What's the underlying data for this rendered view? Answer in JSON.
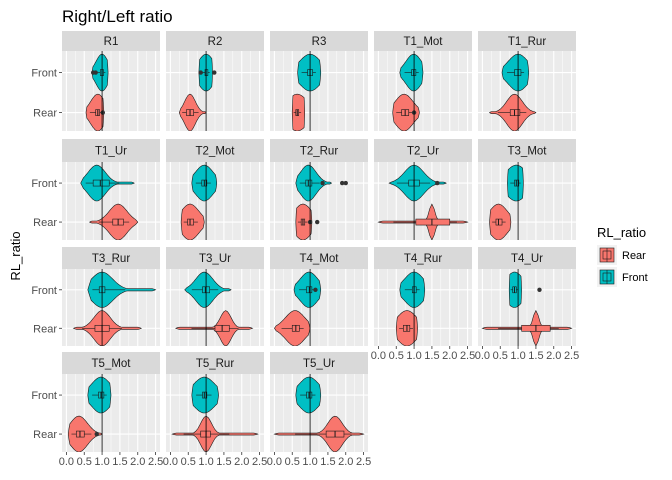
{
  "colors": {
    "Rear": "#F8766D",
    "Front": "#00BFC4",
    "panel": "#EBEBEB",
    "strip": "#D9D9D9",
    "grid": "#FFFFFF"
  },
  "chart_data": {
    "type": "violin",
    "title": "Right/Left ratio",
    "ylabel": "RL_ratio",
    "xlabel": "",
    "categories": [
      "Front",
      "Rear"
    ],
    "xlim": [
      0,
      2.5
    ],
    "reference_line": 1.0,
    "x_tick_values": [
      0,
      0.5,
      1,
      1.5,
      2,
      2.5
    ],
    "x_tick_labels": [
      "0.0",
      "0.5",
      "1.0",
      "1.5",
      "2.0",
      "2.5"
    ],
    "legend": {
      "title": "RL_ratio",
      "entries": [
        "Rear",
        "Front"
      ],
      "position": "right"
    },
    "grid": true,
    "panels": [
      {
        "name": "R1",
        "series": {
          "Front": {
            "min": 0.72,
            "q1": 0.95,
            "median": 1.0,
            "q3": 1.04,
            "max": 1.17,
            "peak": 1.0,
            "width": 0.17,
            "outliers": [
              0.75,
              0.82
            ]
          },
          "Rear": {
            "min": 0.55,
            "q1": 0.82,
            "median": 0.88,
            "q3": 0.93,
            "max": 1.05,
            "peak": 0.88,
            "width": 0.2,
            "outliers": [
              1.02
            ]
          }
        }
      },
      {
        "name": "R2",
        "series": {
          "Front": {
            "min": 0.8,
            "q1": 0.97,
            "median": 1.0,
            "q3": 1.05,
            "max": 1.18,
            "peak": 1.0,
            "width": 0.22,
            "outliers": [
              0.85,
              1.23
            ]
          },
          "Rear": {
            "min": 0.25,
            "q1": 0.45,
            "median": 0.55,
            "q3": 0.65,
            "max": 1.0,
            "peak": 0.55,
            "width": 0.15,
            "outliers": []
          }
        }
      },
      {
        "name": "R3",
        "series": {
          "Front": {
            "min": 0.65,
            "q1": 0.93,
            "median": 1.0,
            "q3": 1.07,
            "max": 1.3,
            "peak": 1.0,
            "width": 0.3,
            "outliers": []
          },
          "Rear": {
            "min": 0.5,
            "q1": 0.6,
            "median": 0.64,
            "q3": 0.68,
            "max": 0.85,
            "peak": 0.64,
            "width": 0.3,
            "outliers": []
          }
        }
      },
      {
        "name": "T1_Mot",
        "series": {
          "Front": {
            "min": 0.6,
            "q1": 0.93,
            "median": 0.99,
            "q3": 1.05,
            "max": 1.25,
            "peak": 0.99,
            "width": 0.22,
            "outliers": []
          },
          "Rear": {
            "min": 0.4,
            "q1": 0.65,
            "median": 0.75,
            "q3": 0.85,
            "max": 1.15,
            "peak": 0.72,
            "width": 0.25,
            "outliers": [
              1.0
            ]
          }
        }
      },
      {
        "name": "T1_Rur",
        "series": {
          "Front": {
            "min": 0.55,
            "q1": 0.9,
            "median": 1.0,
            "q3": 1.08,
            "max": 1.3,
            "peak": 1.0,
            "width": 0.28,
            "outliers": []
          },
          "Rear": {
            "min": 0.2,
            "q1": 0.78,
            "median": 0.9,
            "q3": 1.05,
            "max": 1.5,
            "peak": 0.9,
            "width": 0.22,
            "outliers": []
          }
        }
      },
      {
        "name": "T1_Ur",
        "series": {
          "Front": {
            "min": 0.4,
            "q1": 0.75,
            "median": 0.95,
            "q3": 1.2,
            "max": 1.9,
            "peak": 0.85,
            "width": 0.24,
            "outliers": []
          },
          "Rear": {
            "min": 0.65,
            "q1": 1.3,
            "median": 1.45,
            "q3": 1.6,
            "max": 2.0,
            "peak": 1.45,
            "width": 0.25,
            "outliers": []
          }
        }
      },
      {
        "name": "T2_Mot",
        "series": {
          "Front": {
            "min": 0.6,
            "q1": 0.88,
            "median": 0.95,
            "q3": 1.02,
            "max": 1.3,
            "peak": 0.95,
            "width": 0.25,
            "outliers": []
          },
          "Rear": {
            "min": 0.3,
            "q1": 0.48,
            "median": 0.55,
            "q3": 0.65,
            "max": 0.95,
            "peak": 0.55,
            "width": 0.25,
            "outliers": []
          }
        }
      },
      {
        "name": "T2_Rur",
        "series": {
          "Front": {
            "min": 0.6,
            "q1": 0.88,
            "median": 0.95,
            "q3": 1.05,
            "max": 1.6,
            "peak": 0.95,
            "width": 0.22,
            "outliers": [
              1.35,
              1.9,
              2.0
            ]
          },
          "Rear": {
            "min": 0.6,
            "q1": 0.75,
            "median": 0.8,
            "q3": 0.85,
            "max": 1.05,
            "peak": 0.8,
            "width": 0.25,
            "outliers": [
              1.0,
              1.2
            ]
          }
        }
      },
      {
        "name": "T2_Ur",
        "series": {
          "Front": {
            "min": 0.3,
            "q1": 0.85,
            "median": 1.0,
            "q3": 1.15,
            "max": 1.9,
            "peak": 1.0,
            "width": 0.27,
            "outliers": [
              1.65
            ]
          },
          "Rear": {
            "min": 0.0,
            "q1": 1.05,
            "median": 1.5,
            "q3": 2.0,
            "max": 2.5,
            "peak": 1.5,
            "width": 0.08,
            "outliers": []
          }
        }
      },
      {
        "name": "T3_Mot",
        "series": {
          "Front": {
            "min": 0.7,
            "q1": 0.9,
            "median": 0.95,
            "q3": 1.02,
            "max": 1.15,
            "peak": 0.95,
            "width": 0.3,
            "outliers": []
          },
          "Rear": {
            "min": 0.2,
            "q1": 0.38,
            "median": 0.45,
            "q3": 0.55,
            "max": 0.8,
            "peak": 0.45,
            "width": 0.25,
            "outliers": []
          }
        }
      },
      {
        "name": "T3_Rur",
        "series": {
          "Front": {
            "min": 0.6,
            "q1": 0.92,
            "median": 1.0,
            "q3": 1.08,
            "max": 2.5,
            "peak": 1.0,
            "width": 0.3,
            "outliers": []
          },
          "Rear": {
            "min": 0.2,
            "q1": 0.8,
            "median": 1.0,
            "q3": 1.2,
            "max": 2.1,
            "peak": 1.0,
            "width": 0.23,
            "outliers": []
          }
        }
      },
      {
        "name": "T3_Ur",
        "series": {
          "Front": {
            "min": 0.4,
            "q1": 0.9,
            "median": 0.98,
            "q3": 1.1,
            "max": 1.7,
            "peak": 0.95,
            "width": 0.24,
            "outliers": []
          },
          "Rear": {
            "min": 0.15,
            "q1": 1.25,
            "median": 1.45,
            "q3": 1.65,
            "max": 2.3,
            "peak": 1.55,
            "width": 0.15,
            "outliers": []
          }
        }
      },
      {
        "name": "T4_Mot",
        "series": {
          "Front": {
            "min": 0.55,
            "q1": 0.9,
            "median": 0.98,
            "q3": 1.05,
            "max": 1.3,
            "peak": 0.97,
            "width": 0.25,
            "outliers": [
              1.15
            ]
          },
          "Rear": {
            "min": 0.0,
            "q1": 0.5,
            "median": 0.6,
            "q3": 0.7,
            "max": 1.0,
            "peak": 0.58,
            "width": 0.27,
            "outliers": []
          }
        }
      },
      {
        "name": "T4_Rur",
        "series": {
          "Front": {
            "min": 0.6,
            "q1": 0.95,
            "median": 1.0,
            "q3": 1.06,
            "max": 1.3,
            "peak": 1.0,
            "width": 0.27,
            "outliers": []
          },
          "Rear": {
            "min": 0.5,
            "q1": 0.7,
            "median": 0.8,
            "q3": 0.88,
            "max": 1.1,
            "peak": 0.8,
            "width": 0.28,
            "outliers": []
          }
        }
      },
      {
        "name": "T4_Ur",
        "series": {
          "Front": {
            "min": 0.75,
            "q1": 0.85,
            "median": 0.9,
            "q3": 0.95,
            "max": 1.1,
            "peak": 0.9,
            "width": 0.25,
            "outliers": [
              1.6
            ]
          },
          "Rear": {
            "min": 0.0,
            "q1": 1.1,
            "median": 1.5,
            "q3": 1.9,
            "max": 2.5,
            "peak": 1.5,
            "width": 0.08,
            "outliers": []
          }
        }
      },
      {
        "name": "T5_Mot",
        "series": {
          "Front": {
            "min": 0.6,
            "q1": 0.9,
            "median": 0.97,
            "q3": 1.05,
            "max": 1.25,
            "peak": 0.97,
            "width": 0.27,
            "outliers": []
          },
          "Rear": {
            "min": 0.05,
            "q1": 0.28,
            "median": 0.38,
            "q3": 0.5,
            "max": 1.0,
            "peak": 0.35,
            "width": 0.24,
            "outliers": [
              0.85
            ]
          }
        }
      },
      {
        "name": "T5_Rur",
        "series": {
          "Front": {
            "min": 0.6,
            "q1": 0.9,
            "median": 0.95,
            "q3": 1.02,
            "max": 1.35,
            "peak": 0.95,
            "width": 0.3,
            "outliers": []
          },
          "Rear": {
            "min": 0.05,
            "q1": 0.85,
            "median": 1.0,
            "q3": 1.12,
            "max": 2.45,
            "peak": 1.0,
            "width": 0.15,
            "outliers": []
          }
        }
      },
      {
        "name": "T5_Ur",
        "series": {
          "Front": {
            "min": 0.6,
            "q1": 0.9,
            "median": 0.97,
            "q3": 1.05,
            "max": 1.3,
            "peak": 0.97,
            "width": 0.28,
            "outliers": []
          },
          "Rear": {
            "min": 0.0,
            "q1": 1.45,
            "median": 1.7,
            "q3": 1.95,
            "max": 2.5,
            "peak": 1.7,
            "width": 0.2,
            "outliers": []
          }
        }
      }
    ]
  }
}
